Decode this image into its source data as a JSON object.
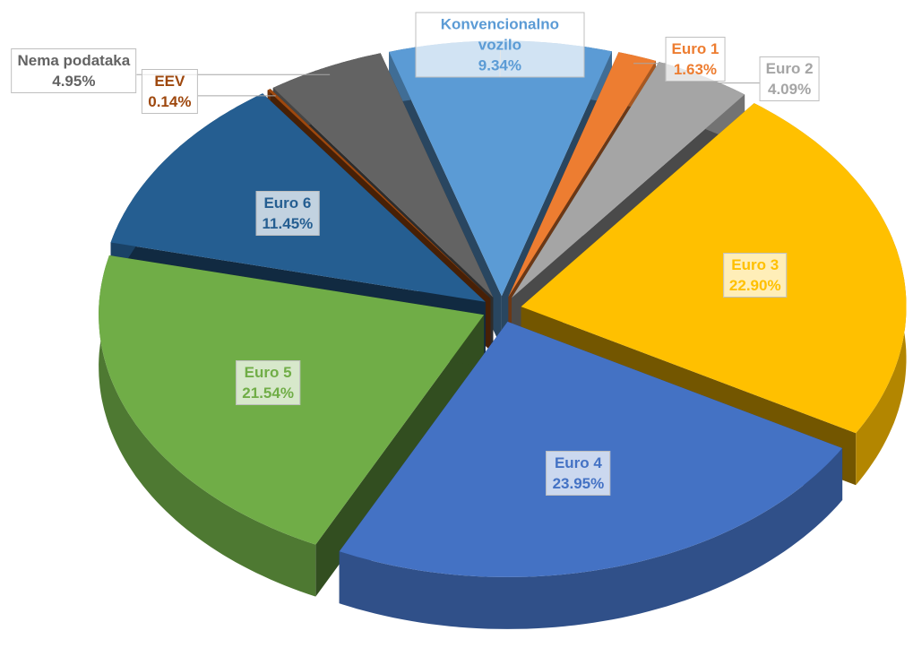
{
  "chart_data": {
    "type": "pie",
    "three_d": true,
    "exploded": true,
    "categories": [
      "Konvencionalno vozilo",
      "Euro 1",
      "Euro 2",
      "Euro 3",
      "Euro 4",
      "Euro 5",
      "Euro 6",
      "EEV",
      "Nema podataka"
    ],
    "values": [
      9.34,
      1.63,
      4.09,
      22.9,
      23.95,
      21.54,
      11.45,
      0.14,
      4.95
    ],
    "value_labels": [
      "9.34%",
      "1.63%",
      "4.09%",
      "22.90%",
      "23.95%",
      "21.54%",
      "11.45%",
      "0.14%",
      "4.95%"
    ],
    "colors": [
      "#5b9bd5",
      "#ed7d31",
      "#a5a5a5",
      "#ffc000",
      "#4472c4",
      "#70ad47",
      "#255e91",
      "#9e480e",
      "#636363"
    ]
  }
}
